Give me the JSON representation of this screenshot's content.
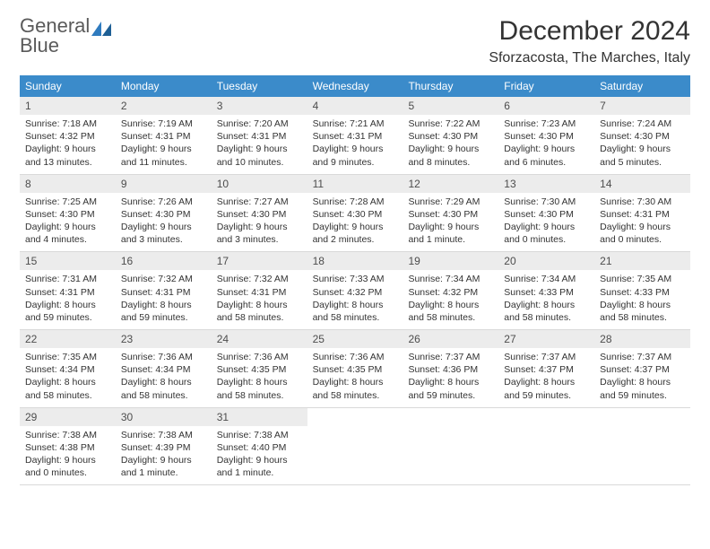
{
  "brand": {
    "word1": "General",
    "word2": "Blue"
  },
  "header": {
    "month_title": "December 2024",
    "location": "Sforzacosta, The Marches, Italy"
  },
  "colors": {
    "header_bg": "#3b8bca",
    "header_fg": "#ffffff",
    "daynum_bg": "#ececec",
    "text": "#333333"
  },
  "days_of_week": [
    "Sunday",
    "Monday",
    "Tuesday",
    "Wednesday",
    "Thursday",
    "Friday",
    "Saturday"
  ],
  "weeks": [
    [
      {
        "n": "1",
        "sr": "Sunrise: 7:18 AM",
        "ss": "Sunset: 4:32 PM",
        "dl": "Daylight: 9 hours and 13 minutes."
      },
      {
        "n": "2",
        "sr": "Sunrise: 7:19 AM",
        "ss": "Sunset: 4:31 PM",
        "dl": "Daylight: 9 hours and 11 minutes."
      },
      {
        "n": "3",
        "sr": "Sunrise: 7:20 AM",
        "ss": "Sunset: 4:31 PM",
        "dl": "Daylight: 9 hours and 10 minutes."
      },
      {
        "n": "4",
        "sr": "Sunrise: 7:21 AM",
        "ss": "Sunset: 4:31 PM",
        "dl": "Daylight: 9 hours and 9 minutes."
      },
      {
        "n": "5",
        "sr": "Sunrise: 7:22 AM",
        "ss": "Sunset: 4:30 PM",
        "dl": "Daylight: 9 hours and 8 minutes."
      },
      {
        "n": "6",
        "sr": "Sunrise: 7:23 AM",
        "ss": "Sunset: 4:30 PM",
        "dl": "Daylight: 9 hours and 6 minutes."
      },
      {
        "n": "7",
        "sr": "Sunrise: 7:24 AM",
        "ss": "Sunset: 4:30 PM",
        "dl": "Daylight: 9 hours and 5 minutes."
      }
    ],
    [
      {
        "n": "8",
        "sr": "Sunrise: 7:25 AM",
        "ss": "Sunset: 4:30 PM",
        "dl": "Daylight: 9 hours and 4 minutes."
      },
      {
        "n": "9",
        "sr": "Sunrise: 7:26 AM",
        "ss": "Sunset: 4:30 PM",
        "dl": "Daylight: 9 hours and 3 minutes."
      },
      {
        "n": "10",
        "sr": "Sunrise: 7:27 AM",
        "ss": "Sunset: 4:30 PM",
        "dl": "Daylight: 9 hours and 3 minutes."
      },
      {
        "n": "11",
        "sr": "Sunrise: 7:28 AM",
        "ss": "Sunset: 4:30 PM",
        "dl": "Daylight: 9 hours and 2 minutes."
      },
      {
        "n": "12",
        "sr": "Sunrise: 7:29 AM",
        "ss": "Sunset: 4:30 PM",
        "dl": "Daylight: 9 hours and 1 minute."
      },
      {
        "n": "13",
        "sr": "Sunrise: 7:30 AM",
        "ss": "Sunset: 4:30 PM",
        "dl": "Daylight: 9 hours and 0 minutes."
      },
      {
        "n": "14",
        "sr": "Sunrise: 7:30 AM",
        "ss": "Sunset: 4:31 PM",
        "dl": "Daylight: 9 hours and 0 minutes."
      }
    ],
    [
      {
        "n": "15",
        "sr": "Sunrise: 7:31 AM",
        "ss": "Sunset: 4:31 PM",
        "dl": "Daylight: 8 hours and 59 minutes."
      },
      {
        "n": "16",
        "sr": "Sunrise: 7:32 AM",
        "ss": "Sunset: 4:31 PM",
        "dl": "Daylight: 8 hours and 59 minutes."
      },
      {
        "n": "17",
        "sr": "Sunrise: 7:32 AM",
        "ss": "Sunset: 4:31 PM",
        "dl": "Daylight: 8 hours and 58 minutes."
      },
      {
        "n": "18",
        "sr": "Sunrise: 7:33 AM",
        "ss": "Sunset: 4:32 PM",
        "dl": "Daylight: 8 hours and 58 minutes."
      },
      {
        "n": "19",
        "sr": "Sunrise: 7:34 AM",
        "ss": "Sunset: 4:32 PM",
        "dl": "Daylight: 8 hours and 58 minutes."
      },
      {
        "n": "20",
        "sr": "Sunrise: 7:34 AM",
        "ss": "Sunset: 4:33 PM",
        "dl": "Daylight: 8 hours and 58 minutes."
      },
      {
        "n": "21",
        "sr": "Sunrise: 7:35 AM",
        "ss": "Sunset: 4:33 PM",
        "dl": "Daylight: 8 hours and 58 minutes."
      }
    ],
    [
      {
        "n": "22",
        "sr": "Sunrise: 7:35 AM",
        "ss": "Sunset: 4:34 PM",
        "dl": "Daylight: 8 hours and 58 minutes."
      },
      {
        "n": "23",
        "sr": "Sunrise: 7:36 AM",
        "ss": "Sunset: 4:34 PM",
        "dl": "Daylight: 8 hours and 58 minutes."
      },
      {
        "n": "24",
        "sr": "Sunrise: 7:36 AM",
        "ss": "Sunset: 4:35 PM",
        "dl": "Daylight: 8 hours and 58 minutes."
      },
      {
        "n": "25",
        "sr": "Sunrise: 7:36 AM",
        "ss": "Sunset: 4:35 PM",
        "dl": "Daylight: 8 hours and 58 minutes."
      },
      {
        "n": "26",
        "sr": "Sunrise: 7:37 AM",
        "ss": "Sunset: 4:36 PM",
        "dl": "Daylight: 8 hours and 59 minutes."
      },
      {
        "n": "27",
        "sr": "Sunrise: 7:37 AM",
        "ss": "Sunset: 4:37 PM",
        "dl": "Daylight: 8 hours and 59 minutes."
      },
      {
        "n": "28",
        "sr": "Sunrise: 7:37 AM",
        "ss": "Sunset: 4:37 PM",
        "dl": "Daylight: 8 hours and 59 minutes."
      }
    ],
    [
      {
        "n": "29",
        "sr": "Sunrise: 7:38 AM",
        "ss": "Sunset: 4:38 PM",
        "dl": "Daylight: 9 hours and 0 minutes."
      },
      {
        "n": "30",
        "sr": "Sunrise: 7:38 AM",
        "ss": "Sunset: 4:39 PM",
        "dl": "Daylight: 9 hours and 1 minute."
      },
      {
        "n": "31",
        "sr": "Sunrise: 7:38 AM",
        "ss": "Sunset: 4:40 PM",
        "dl": "Daylight: 9 hours and 1 minute."
      },
      {
        "empty": true
      },
      {
        "empty": true
      },
      {
        "empty": true
      },
      {
        "empty": true
      }
    ]
  ]
}
